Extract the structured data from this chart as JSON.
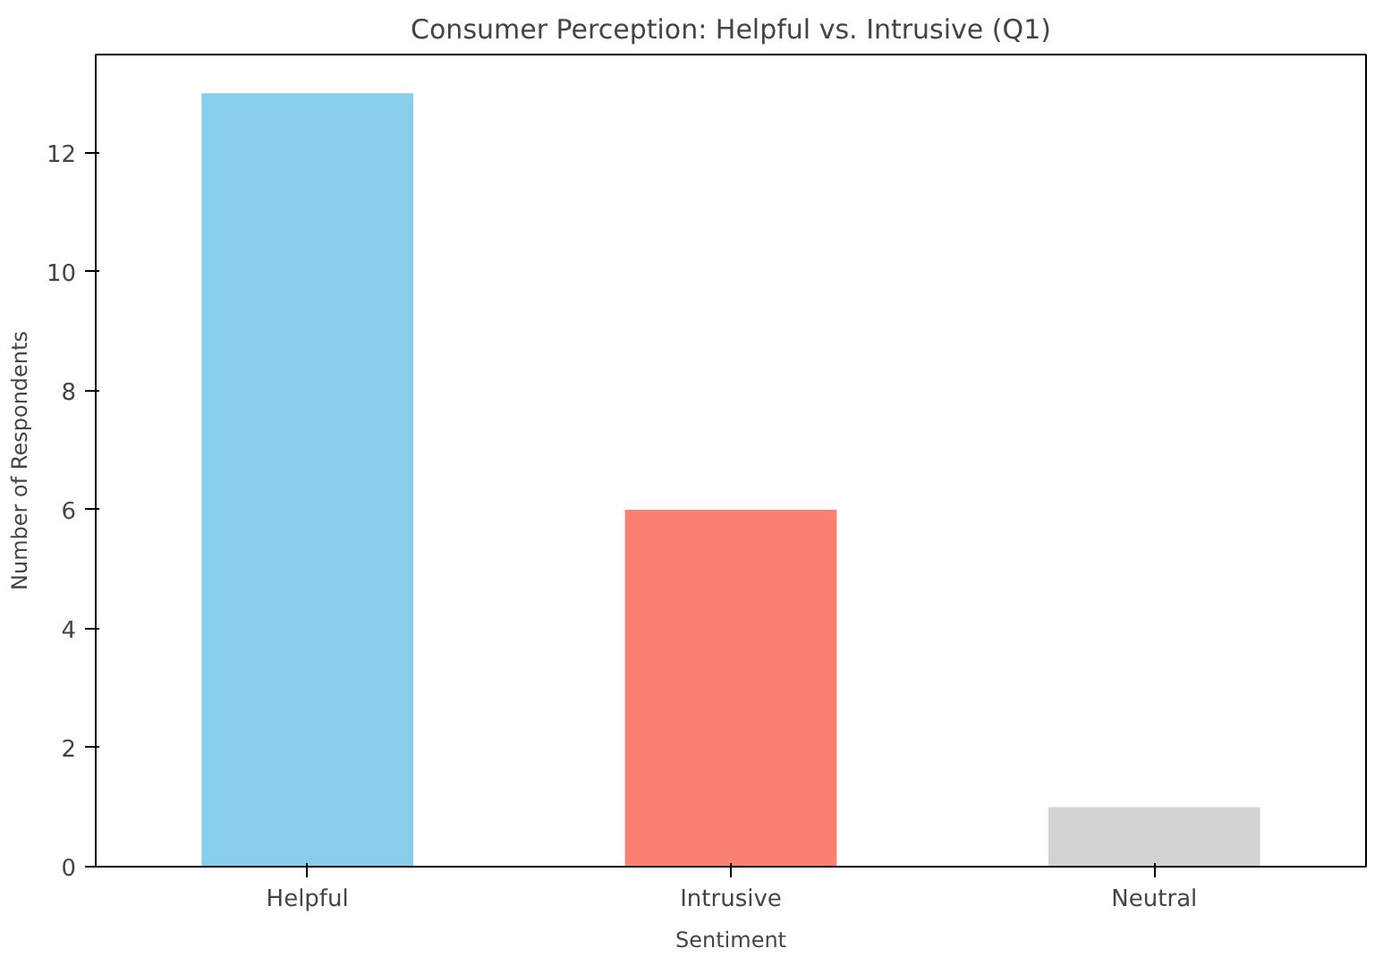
{
  "chart_data": {
    "type": "bar",
    "title": "Consumer Perception: Helpful vs. Intrusive (Q1)",
    "xlabel": "Sentiment",
    "ylabel": "Number of Respondents",
    "categories": [
      "Helpful",
      "Intrusive",
      "Neutral"
    ],
    "values": [
      13,
      6,
      1
    ],
    "colors": [
      "#87ceeb",
      "#fa8072",
      "#d3d3d3"
    ],
    "ylim": [
      0,
      13.65
    ],
    "yticks": [
      0,
      2,
      4,
      6,
      8,
      10,
      12
    ],
    "grid": false
  }
}
